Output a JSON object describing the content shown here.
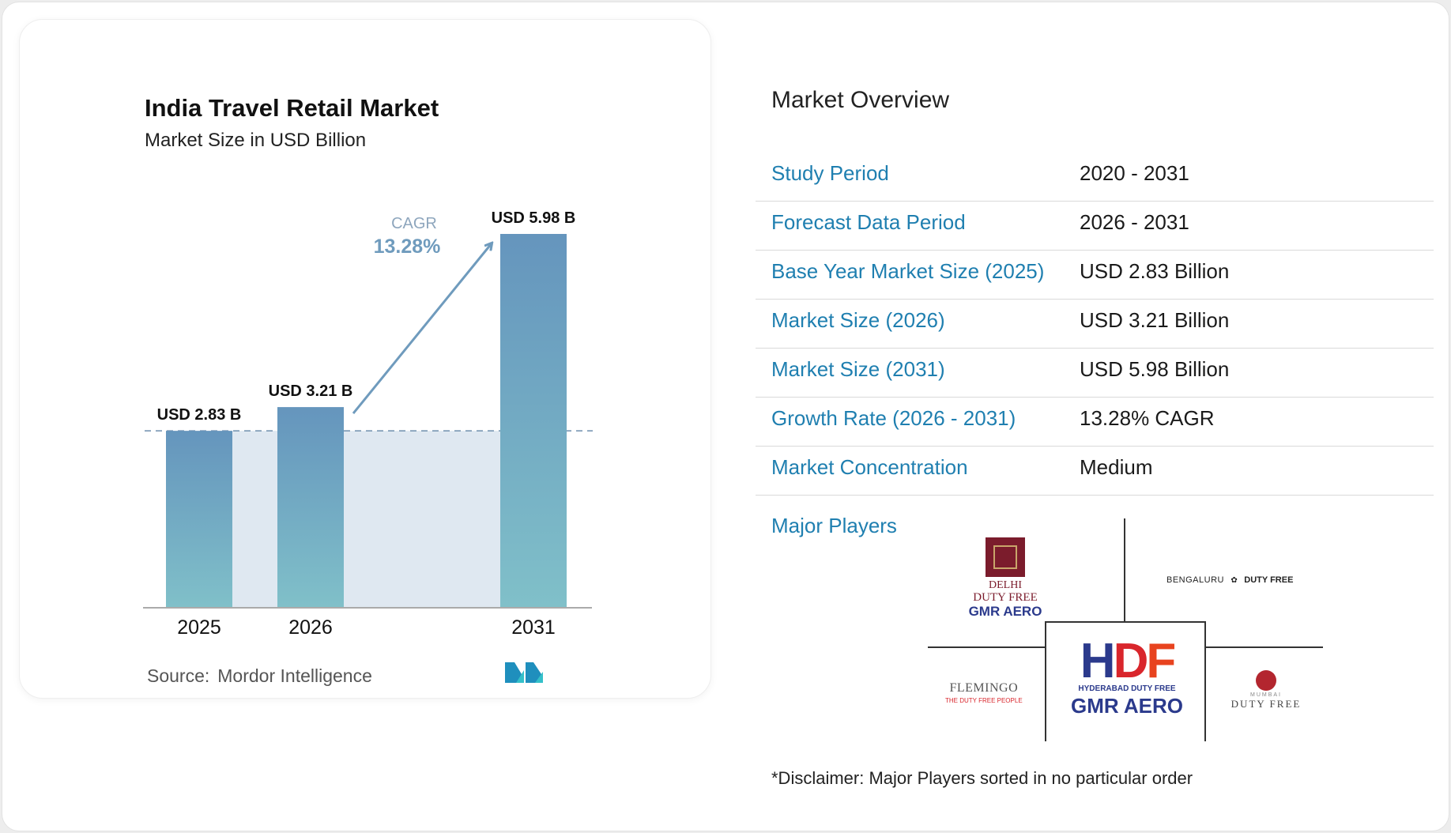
{
  "chart_data": {
    "type": "bar",
    "title": "India Travel Retail Market",
    "subtitle": "Market Size in USD Billion",
    "categories": [
      "2025",
      "2026",
      "2031"
    ],
    "values": [
      2.83,
      3.21,
      5.98
    ],
    "data_labels": [
      "USD 2.83 B",
      "USD 3.21 B",
      "USD 5.98 B"
    ],
    "cagr_label": "CAGR",
    "cagr_value": "13.28%",
    "baseline_value": 2.83,
    "ylim": [
      0,
      5.98
    ],
    "grid": false,
    "colors": {
      "bar_top": "#6595bd",
      "bar_bottom": "#80c0c9",
      "band": "#dfe8f1",
      "arrow": "#6f9bbd",
      "cagr_label": "#8ea6bd",
      "cagr_value": "#6f9bbd"
    }
  },
  "source": {
    "label": "Source:",
    "name": "Mordor Intelligence"
  },
  "overview": {
    "title": "Market Overview",
    "rows": [
      {
        "label": "Study Period",
        "value": "2020 - 2031"
      },
      {
        "label": "Forecast Data Period",
        "value": "2026 - 2031"
      },
      {
        "label": "Base Year Market Size (2025)",
        "value": "USD 2.83 Billion"
      },
      {
        "label": "Market Size (2026)",
        "value": "USD 3.21 Billion"
      },
      {
        "label": "Market Size (2031)",
        "value": "USD 5.98 Billion"
      },
      {
        "label": "Growth Rate (2026 - 2031)",
        "value": "13.28% CAGR"
      },
      {
        "label": "Market Concentration",
        "value": "Medium"
      }
    ],
    "players_label": "Major Players",
    "players": {
      "delhi": {
        "line1": "DELHI",
        "line2": "DUTY FREE",
        "line3": "GMR AERO"
      },
      "bengaluru": {
        "city": "BENGALURU",
        "tag": "DUTY FREE"
      },
      "hyderabad": {
        "mark": "HDF",
        "line1": "HYDERABAD DUTY FREE",
        "line2": "GMR AERO"
      },
      "flemingo": {
        "name": "FLEMINGO",
        "tag": "THE DUTY FREE PEOPLE"
      },
      "mumbai": {
        "city": "MUMBAI",
        "tag": "DUTY FREE"
      }
    },
    "disclaimer": "*Disclaimer: Major Players sorted in no particular order"
  },
  "theme": {
    "accent": "#1f7fb0",
    "brand_red": "#d9262c",
    "brand_navy": "#2b3a8c"
  }
}
